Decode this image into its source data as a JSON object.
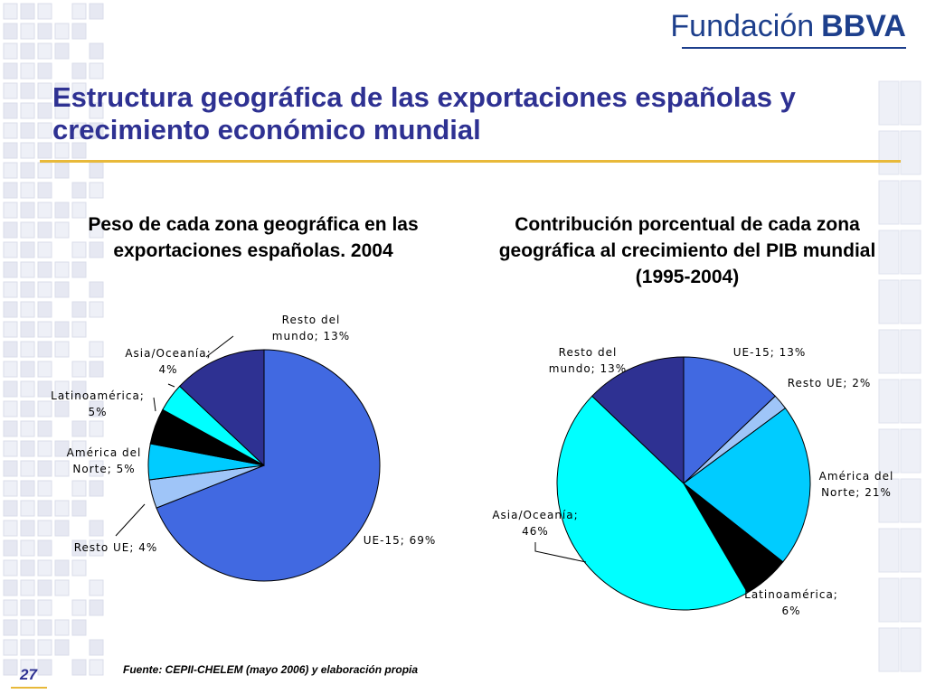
{
  "brand": {
    "name": "Fundación",
    "mark": "BBVA"
  },
  "slide_title": "Estructura geográfica de las exportaciones españolas y crecimiento económico mundial",
  "page_number": "27",
  "source": "Fuente:  CEPII-CHELEM (mayo 2006) y elaboración propia",
  "colors": {
    "title": "#2e3192",
    "accent_rule": "#e8b93a"
  },
  "chart_data": [
    {
      "type": "pie",
      "title": "Peso de cada zona geográfica en las exportaciones españolas. 2004",
      "slices": [
        {
          "label": "UE-15; 69%",
          "value": 69,
          "color": "#4169e1"
        },
        {
          "label": "Resto UE; 4%",
          "value": 4,
          "color": "#9fc5f8"
        },
        {
          "label": "América del Norte; 5%",
          "value": 5,
          "color": "#00ccff"
        },
        {
          "label": "Latinoamérica; 5%",
          "value": 5,
          "color": "#000000"
        },
        {
          "label": "Asia/Oceanía; 4%",
          "value": 4,
          "color": "#00ffff"
        },
        {
          "label": "Resto del mundo; 13%",
          "value": 13,
          "color": "#2e3192"
        }
      ]
    },
    {
      "type": "pie",
      "title": "Contribución porcentual de cada zona geográfica al crecimiento del PIB mundial (1995-2004)",
      "slices": [
        {
          "label": "UE-15; 13%",
          "value": 13,
          "color": "#4169e1"
        },
        {
          "label": "Resto UE; 2%",
          "value": 2,
          "color": "#9fc5f8"
        },
        {
          "label": "América del Norte; 21%",
          "value": 21,
          "color": "#00ccff"
        },
        {
          "label": "Latinoamérica; 6%",
          "value": 6,
          "color": "#000000"
        },
        {
          "label": "Asia/Oceanía; 46%",
          "value": 46,
          "color": "#00ffff"
        },
        {
          "label": "Resto del mundo; 13%",
          "value": 13,
          "color": "#2e3192"
        }
      ]
    }
  ]
}
